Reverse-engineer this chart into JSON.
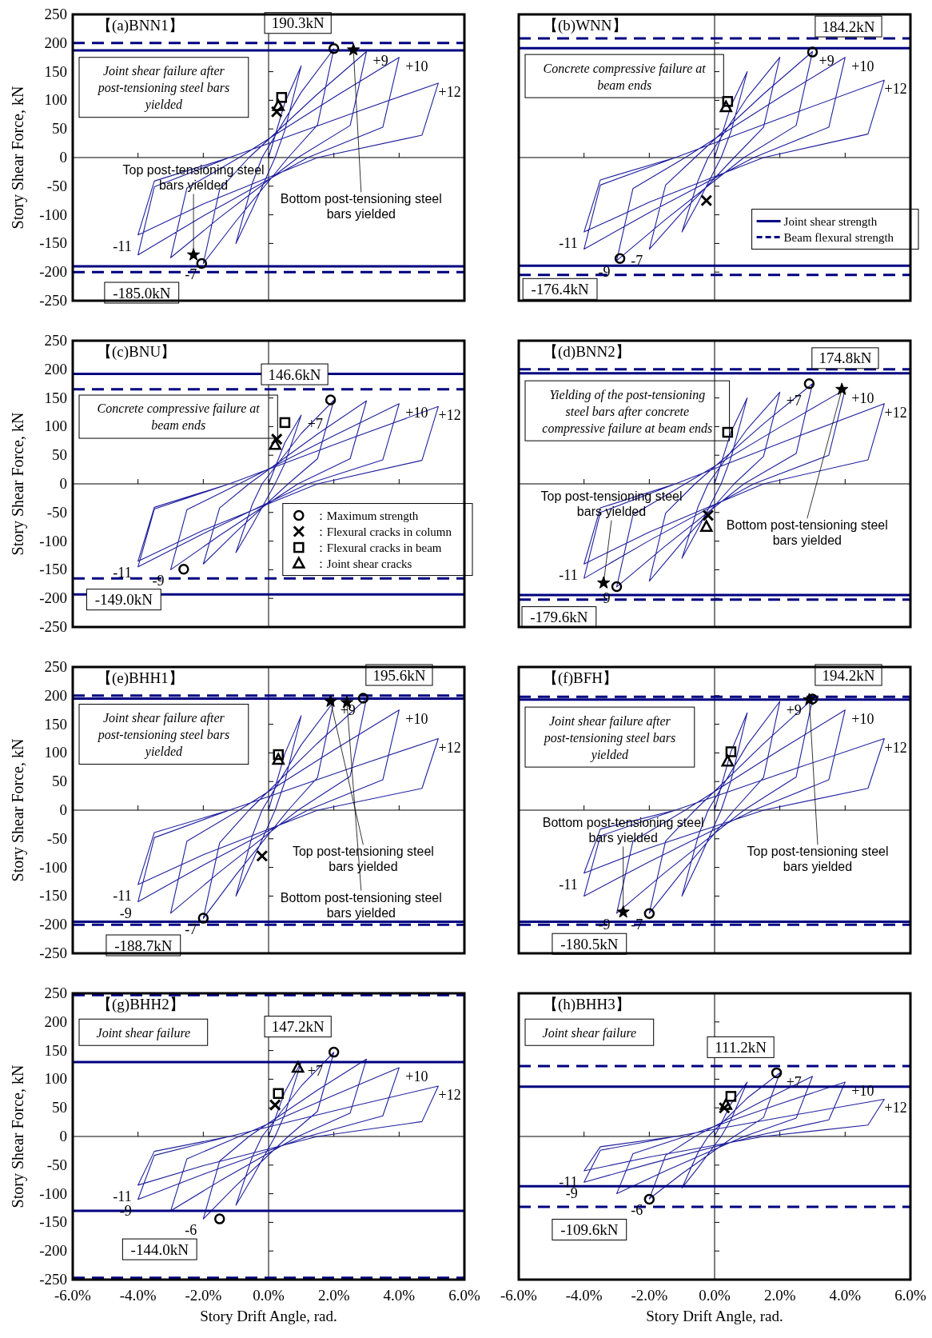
{
  "chart_data": [
    {
      "type": "line",
      "title": "【(a)BNN1】",
      "ylabel": "Story Shear Force, kN",
      "xlim": [
        -6,
        6
      ],
      "ylim": [
        -250,
        250
      ],
      "xticks": [
        -6,
        -4,
        -2,
        0,
        2,
        4,
        6
      ],
      "yticks": [
        -250,
        -200,
        -150,
        -100,
        -50,
        0,
        50,
        100,
        150,
        200,
        250
      ],
      "tick_labels": "y",
      "series": [
        {
          "type": "line",
          "color": "#1f1f9e",
          "x": [
            0,
            0.5,
            1,
            0.5,
            0.2,
            -0.5,
            -1,
            -0.5,
            -0.2,
            1,
            2,
            1.5,
            0.6,
            -1,
            -2,
            -1.5,
            -0.6,
            1.5,
            3,
            2.5,
            0.9,
            -1.5,
            -3,
            -2.5,
            -0.9,
            2,
            4,
            3.5,
            1.2,
            -2,
            -4,
            -3.5,
            -1.2,
            2.6,
            5.2,
            4.7,
            1.5,
            -2,
            -4,
            -3.5,
            -1.2
          ],
          "values": [
            0,
            96,
            160,
            48,
            0,
            -90,
            -150,
            -45,
            0,
            114,
            190,
            57,
            0,
            -111,
            -185,
            -56,
            0,
            111,
            185,
            56,
            0,
            -105,
            -175,
            -53,
            0,
            105,
            175,
            53,
            0,
            -102,
            -170,
            -51,
            0,
            78,
            130,
            39,
            0,
            -81,
            -135,
            -41,
            0
          ]
        },
        {
          "type": "scatter",
          "marker": "circle",
          "color": "#000000",
          "x": [
            2.0,
            -2.05
          ],
          "values": [
            190.3,
            -185.0
          ],
          "value_labels": [
            "190.3kN",
            "-185.0kN"
          ]
        },
        {
          "type": "scatter",
          "marker": "star",
          "color": "#000000",
          "x": [
            2.6,
            -2.3
          ],
          "values": [
            188,
            -170
          ]
        },
        {
          "type": "scatter",
          "marker": "square",
          "color": "#000000",
          "x": [
            0.4
          ],
          "values": [
            105
          ]
        },
        {
          "type": "scatter",
          "marker": "triangle",
          "color": "#000000",
          "x": [
            0.3
          ],
          "values": [
            90
          ]
        },
        {
          "type": "scatter",
          "marker": "cross",
          "color": "#000000",
          "x": [
            0.25
          ],
          "values": [
            80
          ]
        }
      ],
      "ref_lines": [
        {
          "axis": "y",
          "value": 200,
          "color": "#000080",
          "line_style": "dashed"
        },
        {
          "axis": "y",
          "value": 187,
          "color": "#000080",
          "line_style": "solid"
        },
        {
          "axis": "y",
          "value": -190,
          "color": "#000080",
          "line_style": "solid"
        },
        {
          "axis": "y",
          "value": -200,
          "color": "#000080",
          "line_style": "dashed"
        }
      ],
      "annotations": [
        "Joint shear failure after post-tensioning steel bars yielded",
        {
          "text": "+9",
          "x": 3,
          "y": 185
        },
        {
          "text": "+10",
          "x": 4,
          "y": 175
        },
        {
          "text": "+12",
          "x": 5.2,
          "y": 130
        },
        {
          "text": "-11",
          "x": -4,
          "y": -135
        },
        {
          "text": "-7",
          "x": -2,
          "y": -185
        },
        {
          "text": "Top post-tensioning steel bars yielded",
          "x": -2.3,
          "y": -170
        },
        {
          "text": "Bottom post-tensioning steel bars yielded",
          "x": 2.6,
          "y": 188
        }
      ]
    },
    {
      "type": "line",
      "title": "【(b)WNN】",
      "xlim": [
        -6,
        6
      ],
      "ylim": [
        -250,
        250
      ],
      "xticks": [
        -6,
        -4,
        -2,
        0,
        2,
        4,
        6
      ],
      "yticks": [
        -250,
        -200,
        -150,
        -100,
        -50,
        0,
        50,
        100,
        150,
        200,
        250
      ],
      "tick_labels": false,
      "legend": "bottom right",
      "series": [
        {
          "type": "line",
          "color": "#1f1f9e",
          "x": [
            0,
            0.5,
            1,
            0.5,
            0.2,
            -0.5,
            -1,
            -0.5,
            -0.2,
            1,
            2,
            1.5,
            0.6,
            -1,
            -2,
            -1.5,
            -0.6,
            1.5,
            3,
            2.5,
            0.9,
            -1.5,
            -3,
            -2.5,
            -0.9,
            2,
            4,
            3.5,
            1.2,
            -2,
            -4,
            -3.5,
            -1.2,
            2.6,
            5.2,
            4.7,
            1.5,
            -2,
            -4,
            -3.5,
            -1.2
          ],
          "values": [
            0,
            90,
            150,
            45,
            0,
            -78,
            -130,
            -39,
            0,
            105,
            175,
            53,
            0,
            -96,
            -160,
            -48,
            0,
            111,
            185,
            56,
            0,
            -108,
            -180,
            -54,
            0,
            105,
            175,
            53,
            0,
            -96,
            -160,
            -48,
            0,
            81,
            135,
            41,
            0,
            -78,
            -130,
            -39,
            0
          ]
        },
        {
          "type": "scatter",
          "marker": "circle",
          "color": "#000000",
          "x": [
            3.0,
            -2.9
          ],
          "values": [
            184.2,
            -176.4
          ],
          "value_labels": [
            "184.2kN",
            "-176.4kN"
          ]
        },
        {
          "type": "scatter",
          "marker": "square",
          "color": "#000000",
          "x": [
            0.4
          ],
          "values": [
            98
          ]
        },
        {
          "type": "scatter",
          "marker": "triangle",
          "color": "#000000",
          "x": [
            0.35
          ],
          "values": [
            88
          ]
        },
        {
          "type": "scatter",
          "marker": "cross",
          "color": "#000000",
          "x": [
            -0.25
          ],
          "values": [
            -75
          ]
        }
      ],
      "ref_lines": [
        {
          "axis": "y",
          "value": 191,
          "color": "#000080",
          "line_style": "solid",
          "label": "Joint shear strength"
        },
        {
          "axis": "y",
          "value": 208,
          "color": "#000080",
          "line_style": "dashed",
          "label": "Beam flexural strength"
        },
        {
          "axis": "y",
          "value": -189,
          "color": "#000080",
          "line_style": "solid"
        },
        {
          "axis": "y",
          "value": -205,
          "color": "#000080",
          "line_style": "dashed"
        }
      ],
      "annotations": [
        "Concrete compressive failure at beam ends",
        {
          "text": "+9",
          "x": 3,
          "y": 185
        },
        {
          "text": "+10",
          "x": 4,
          "y": 175
        },
        {
          "text": "+12",
          "x": 5.2,
          "y": 135
        },
        {
          "text": "-11",
          "x": -4,
          "y": -130
        },
        {
          "text": "-9",
          "x": -3,
          "y": -180
        },
        {
          "text": "-7",
          "x": -2,
          "y": -160
        }
      ]
    },
    {
      "type": "line",
      "title": "【(c)BNU】",
      "ylabel": "Story Shear Force, kN",
      "xlim": [
        -6,
        6
      ],
      "ylim": [
        -250,
        250
      ],
      "xticks": [
        -6,
        -4,
        -2,
        0,
        2,
        4,
        6
      ],
      "yticks": [
        -250,
        -200,
        -150,
        -100,
        -50,
        0,
        50,
        100,
        150,
        200,
        250
      ],
      "tick_labels": "y",
      "legend": "bottom right",
      "series": [
        {
          "type": "line",
          "color": "#1f1f9e",
          "x": [
            0,
            0.5,
            1,
            0.5,
            0.2,
            -0.5,
            -1,
            -0.5,
            -0.2,
            1,
            2,
            1.5,
            0.6,
            -1,
            -2,
            -1.5,
            -0.6,
            1.5,
            3,
            2.5,
            0.9,
            -1.5,
            -3,
            -2.5,
            -0.9,
            2,
            4,
            3.5,
            1.2,
            -2,
            -4,
            -3.5,
            -1.2,
            2.6,
            5.2,
            4.7,
            1.5,
            -2,
            -4,
            -3.5,
            -1.2
          ],
          "values": [
            0,
            72,
            120,
            36,
            0,
            -72,
            -120,
            -36,
            0,
            88,
            146,
            44,
            0,
            -84,
            -140,
            -42,
            0,
            87,
            145,
            44,
            0,
            -90,
            -150,
            -45,
            0,
            84,
            140,
            42,
            0,
            -87,
            -145,
            -44,
            0,
            81,
            135,
            41,
            0,
            -81,
            -135,
            -41,
            0
          ]
        },
        {
          "type": "scatter",
          "name": "：Maximum strength",
          "marker": "circle",
          "color": "#000000",
          "x": [
            1.9,
            -2.6
          ],
          "values": [
            146.6,
            -149.0
          ],
          "value_labels": [
            "146.6kN",
            "-149.0kN"
          ]
        },
        {
          "type": "scatter",
          "name": "：Flexural cracks in column",
          "marker": "cross",
          "color": "#000000",
          "x": [
            0.25
          ],
          "values": [
            78
          ]
        },
        {
          "type": "scatter",
          "name": "：Flexural cracks in beam",
          "marker": "square",
          "color": "#000000",
          "x": [
            0.5
          ],
          "values": [
            107
          ]
        },
        {
          "type": "scatter",
          "name": "：Joint shear cracks",
          "marker": "triangle",
          "color": "#000000",
          "x": [
            0.2
          ],
          "values": [
            68
          ]
        }
      ],
      "ref_lines": [
        {
          "axis": "y",
          "value": 192,
          "color": "#000080",
          "line_style": "solid"
        },
        {
          "axis": "y",
          "value": 165,
          "color": "#000080",
          "line_style": "dashed"
        },
        {
          "axis": "y",
          "value": -165,
          "color": "#000080",
          "line_style": "dashed"
        },
        {
          "axis": "y",
          "value": -193,
          "color": "#000080",
          "line_style": "solid"
        }
      ],
      "annotations": [
        "Concrete compressive failure at beam ends",
        {
          "text": "+7",
          "x": 1,
          "y": 120
        },
        {
          "text": "+10",
          "x": 4,
          "y": 140
        },
        {
          "text": "+12",
          "x": 5.2,
          "y": 135
        },
        {
          "text": "-11",
          "x": -4,
          "y": -135
        },
        {
          "text": "-9",
          "x": -3,
          "y": -150
        }
      ]
    },
    {
      "type": "line",
      "title": "【(d)BNN2】",
      "xlim": [
        -6,
        6
      ],
      "ylim": [
        -250,
        250
      ],
      "xticks": [
        -6,
        -4,
        -2,
        0,
        2,
        4,
        6
      ],
      "yticks": [
        -250,
        -200,
        -150,
        -100,
        -50,
        0,
        50,
        100,
        150,
        200,
        250
      ],
      "tick_labels": false,
      "series": [
        {
          "type": "line",
          "color": "#1f1f9e",
          "x": [
            0,
            0.5,
            1,
            0.5,
            0.2,
            -0.5,
            -1,
            -0.5,
            -0.2,
            1,
            2,
            1.5,
            0.6,
            -1,
            -2,
            -1.5,
            -0.6,
            1.5,
            3,
            2.5,
            0.9,
            -1.5,
            -3,
            -2.5,
            -0.9,
            2,
            4,
            3.5,
            1.2,
            -2,
            -4,
            -3.5,
            -1.2,
            2.6,
            5.2,
            4.7,
            1.5,
            -2,
            -4,
            -3.5,
            -1.2
          ],
          "values": [
            0,
            90,
            150,
            45,
            0,
            -78,
            -130,
            -39,
            0,
            96,
            160,
            48,
            0,
            -102,
            -170,
            -51,
            0,
            105,
            175,
            53,
            0,
            -108,
            -180,
            -54,
            0,
            99,
            165,
            50,
            0,
            -99,
            -165,
            -50,
            0,
            84,
            140,
            42,
            0,
            -84,
            -140,
            -42,
            0
          ]
        },
        {
          "type": "scatter",
          "marker": "circle",
          "color": "#000000",
          "x": [
            2.9,
            -3.0
          ],
          "values": [
            174.8,
            -179.6
          ],
          "value_labels": [
            "174.8kN",
            "-179.6kN"
          ]
        },
        {
          "type": "scatter",
          "marker": "star",
          "color": "#000000",
          "x": [
            3.9,
            -3.4
          ],
          "values": [
            165,
            -173
          ]
        },
        {
          "type": "scatter",
          "marker": "square",
          "color": "#000000",
          "x": [
            0.4
          ],
          "values": [
            90
          ]
        },
        {
          "type": "scatter",
          "marker": "cross",
          "color": "#000000",
          "x": [
            -0.2
          ],
          "values": [
            -55
          ]
        },
        {
          "type": "scatter",
          "marker": "triangle",
          "color": "#000000",
          "x": [
            -0.25
          ],
          "values": [
            -75
          ]
        }
      ],
      "ref_lines": [
        {
          "axis": "y",
          "value": 200,
          "color": "#000080",
          "line_style": "dashed"
        },
        {
          "axis": "y",
          "value": 193,
          "color": "#000080",
          "line_style": "solid"
        },
        {
          "axis": "y",
          "value": -194,
          "color": "#000080",
          "line_style": "solid"
        },
        {
          "axis": "y",
          "value": -202,
          "color": "#000080",
          "line_style": "dashed"
        }
      ],
      "annotations": [
        "Yielding of the post-tensioning steel bars after concrete compressive failure at beam ends",
        {
          "text": "+7",
          "x": 2,
          "y": 160
        },
        {
          "text": "+10",
          "x": 4,
          "y": 165
        },
        {
          "text": "+12",
          "x": 5.2,
          "y": 140
        },
        {
          "text": "-11",
          "x": -4,
          "y": -140
        },
        {
          "text": "-9",
          "x": -3,
          "y": -180
        },
        {
          "text": "Bottom post-tensioning steel bars yielded",
          "x": 3.9,
          "y": 165
        },
        {
          "text": "Top post-tensioning steel bars yielded",
          "x": -3.4,
          "y": -173
        }
      ]
    },
    {
      "type": "line",
      "title": "【(e)BHH1】",
      "ylabel": "Story Shear Force, kN",
      "xlim": [
        -6,
        6
      ],
      "ylim": [
        -250,
        250
      ],
      "xticks": [
        -6,
        -4,
        -2,
        0,
        2,
        4,
        6
      ],
      "yticks": [
        -250,
        -200,
        -150,
        -100,
        -50,
        0,
        50,
        100,
        150,
        200,
        250
      ],
      "tick_labels": "y",
      "series": [
        {
          "type": "line",
          "color": "#1f1f9e",
          "x": [
            0,
            0.5,
            1,
            0.5,
            0.2,
            -0.5,
            -1,
            -0.5,
            -0.2,
            1,
            2,
            1.5,
            0.6,
            -1,
            -2,
            -1.5,
            -0.6,
            1.5,
            3,
            2.5,
            0.9,
            -1.5,
            -3,
            -2.5,
            -0.9,
            2,
            4,
            3.5,
            1.2,
            -2,
            -4,
            -3.5,
            -1.2,
            2.6,
            5.2,
            4.7,
            1.5,
            -2,
            -4,
            -3.5,
            -1.2
          ],
          "values": [
            0,
            99,
            165,
            50,
            0,
            -90,
            -150,
            -45,
            0,
            114,
            190,
            57,
            0,
            -113,
            -189,
            -57,
            0,
            117,
            195,
            59,
            0,
            -108,
            -180,
            -54,
            0,
            105,
            175,
            53,
            0,
            -96,
            -160,
            -48,
            0,
            75,
            125,
            38,
            0,
            -78,
            -130,
            -39,
            0
          ]
        },
        {
          "type": "scatter",
          "marker": "circle",
          "color": "#000000",
          "x": [
            2.9,
            -2.0
          ],
          "values": [
            195.6,
            -188.7
          ],
          "value_labels": [
            "195.6kN",
            "-188.7kN"
          ]
        },
        {
          "type": "scatter",
          "marker": "star",
          "color": "#000000",
          "x": [
            1.9,
            2.4
          ],
          "values": [
            190,
            188
          ]
        },
        {
          "type": "scatter",
          "marker": "square",
          "color": "#000000",
          "x": [
            0.3
          ],
          "values": [
            97
          ]
        },
        {
          "type": "scatter",
          "marker": "triangle",
          "color": "#000000",
          "x": [
            0.3
          ],
          "values": [
            88
          ]
        },
        {
          "type": "scatter",
          "marker": "cross",
          "color": "#000000",
          "x": [
            -0.2
          ],
          "values": [
            -80
          ]
        }
      ],
      "ref_lines": [
        {
          "axis": "y",
          "value": 200,
          "color": "#000080",
          "line_style": "dashed"
        },
        {
          "axis": "y",
          "value": 195,
          "color": "#000080",
          "line_style": "solid"
        },
        {
          "axis": "y",
          "value": -195,
          "color": "#000080",
          "line_style": "solid"
        },
        {
          "axis": "y",
          "value": -200,
          "color": "#000080",
          "line_style": "dashed"
        }
      ],
      "annotations": [
        "Joint shear failure after post-tensioning steel bars yielded",
        {
          "text": "+9",
          "x": 2,
          "y": 190
        },
        {
          "text": "+10",
          "x": 4,
          "y": 175
        },
        {
          "text": "+12",
          "x": 5.2,
          "y": 125
        },
        {
          "text": "-11",
          "x": -4,
          "y": -130
        },
        {
          "text": "-9",
          "x": -4,
          "y": -160
        },
        {
          "text": "-7",
          "x": -2,
          "y": -189
        },
        {
          "text": "Top post-tensioning steel bars yielded",
          "x": 1.9,
          "y": 190
        },
        {
          "text": "Bottom post-tensioning steel bars yielded",
          "x": 2.4,
          "y": 188
        }
      ]
    },
    {
      "type": "line",
      "title": "【(f)BFH】",
      "xlim": [
        -6,
        6
      ],
      "ylim": [
        -250,
        250
      ],
      "xticks": [
        -6,
        -4,
        -2,
        0,
        2,
        4,
        6
      ],
      "yticks": [
        -250,
        -200,
        -150,
        -100,
        -50,
        0,
        50,
        100,
        150,
        200,
        250
      ],
      "tick_labels": false,
      "series": [
        {
          "type": "line",
          "color": "#1f1f9e",
          "x": [
            0,
            0.5,
            1,
            0.5,
            0.2,
            -0.5,
            -1,
            -0.5,
            -0.2,
            1,
            2,
            1.5,
            0.6,
            -1,
            -2,
            -1.5,
            -0.6,
            1.5,
            3,
            2.5,
            0.9,
            -1.5,
            -3,
            -2.5,
            -0.9,
            2,
            4,
            3.5,
            1.2,
            -2,
            -4,
            -3.5,
            -1.2,
            2.6,
            5.2,
            4.7,
            1.5,
            -2,
            -4,
            -3.5,
            -1.2
          ],
          "values": [
            0,
            102,
            170,
            51,
            0,
            -90,
            -150,
            -45,
            0,
            114,
            190,
            57,
            0,
            -108,
            -180,
            -54,
            0,
            116,
            194,
            58,
            0,
            -108,
            -180,
            -54,
            0,
            105,
            175,
            53,
            0,
            -90,
            -150,
            -45,
            0,
            75,
            125,
            38,
            0,
            -66,
            -110,
            -33,
            0
          ]
        },
        {
          "type": "scatter",
          "marker": "circle",
          "color": "#000000",
          "x": [
            3.0,
            -2.0
          ],
          "values": [
            194.2,
            -180.5
          ],
          "value_labels": [
            "194.2kN",
            "-180.5kN"
          ]
        },
        {
          "type": "scatter",
          "marker": "star",
          "color": "#000000",
          "x": [
            2.9,
            -2.8
          ],
          "values": [
            193,
            -178
          ]
        },
        {
          "type": "scatter",
          "marker": "square",
          "color": "#000000",
          "x": [
            0.5
          ],
          "values": [
            102
          ]
        },
        {
          "type": "scatter",
          "marker": "triangle",
          "color": "#000000",
          "x": [
            0.4
          ],
          "values": [
            85
          ]
        }
      ],
      "ref_lines": [
        {
          "axis": "y",
          "value": 198,
          "color": "#000080",
          "line_style": "dashed"
        },
        {
          "axis": "y",
          "value": 193,
          "color": "#000080",
          "line_style": "solid"
        },
        {
          "axis": "y",
          "value": -195,
          "color": "#000080",
          "line_style": "solid"
        },
        {
          "axis": "y",
          "value": -200,
          "color": "#000080",
          "line_style": "dashed"
        }
      ],
      "annotations": [
        "Joint shear failure after post-tensioning steel bars yielded",
        {
          "text": "+9",
          "x": 2,
          "y": 190
        },
        {
          "text": "+10",
          "x": 4,
          "y": 175
        },
        {
          "text": "+12",
          "x": 5.2,
          "y": 125
        },
        {
          "text": "-11",
          "x": -4,
          "y": -110
        },
        {
          "text": "-9",
          "x": -3,
          "y": -180
        },
        {
          "text": "-7",
          "x": -2,
          "y": -180
        },
        {
          "text": "Bottom post-tensioning steel bars yielded",
          "x": -2.8,
          "y": -178
        },
        {
          "text": "Top post-tensioning steel bars yielded",
          "x": 2.9,
          "y": 193
        }
      ]
    },
    {
      "type": "line",
      "title": "【(g)BHH2】",
      "ylabel": "Story Shear Force, kN",
      "xlabel": "Story Drift Angle, rad.",
      "xlim": [
        -6,
        6
      ],
      "ylim": [
        -250,
        250
      ],
      "xticks": [
        {
          "value": -6,
          "label": "-6.0%"
        },
        {
          "value": -4,
          "label": "-4.0%"
        },
        {
          "value": -2,
          "label": "-2.0%"
        },
        {
          "value": 0,
          "label": "0.0%"
        },
        {
          "value": 2,
          "label": "2.0%"
        },
        {
          "value": 4,
          "label": "4.0%"
        },
        {
          "value": 6,
          "label": "6.0%"
        }
      ],
      "yticks": [
        -250,
        -200,
        -150,
        -100,
        -50,
        0,
        50,
        100,
        150,
        200,
        250
      ],
      "series": [
        {
          "type": "line",
          "color": "#1f1f9e",
          "x": [
            0,
            0.5,
            1,
            0.5,
            0.2,
            -0.5,
            -1,
            -0.5,
            -0.2,
            1,
            2,
            1.5,
            0.6,
            -1,
            -2,
            -1.5,
            -0.6,
            1.5,
            3,
            2.5,
            0.9,
            -1.5,
            -3,
            -2.5,
            -0.9,
            2,
            4,
            3.5,
            1.2,
            -2,
            -4,
            -3.5,
            -1.2,
            2.6,
            5.2,
            4.7,
            1.5,
            -2,
            -4,
            -3.5,
            -1.2
          ],
          "values": [
            0,
            78,
            130,
            39,
            0,
            -72,
            -120,
            -36,
            0,
            88,
            147,
            44,
            0,
            -86,
            -144,
            -43,
            0,
            81,
            135,
            41,
            0,
            -78,
            -130,
            -39,
            0,
            72,
            120,
            36,
            0,
            -66,
            -110,
            -33,
            0,
            53,
            88,
            26,
            0,
            -51,
            -85,
            -26,
            0
          ]
        },
        {
          "type": "scatter",
          "marker": "circle",
          "color": "#000000",
          "x": [
            2.0,
            -1.5
          ],
          "values": [
            147.2,
            -144.0
          ],
          "value_labels": [
            "147.2kN",
            "-144.0kN"
          ]
        },
        {
          "type": "scatter",
          "marker": "triangle",
          "color": "#000000",
          "x": [
            0.9
          ],
          "values": [
            120
          ]
        },
        {
          "type": "scatter",
          "marker": "square",
          "color": "#000000",
          "x": [
            0.3
          ],
          "values": [
            75
          ]
        },
        {
          "type": "scatter",
          "marker": "cross",
          "color": "#000000",
          "x": [
            0.2
          ],
          "values": [
            55
          ]
        }
      ],
      "ref_lines": [
        {
          "axis": "y",
          "value": 247,
          "color": "#000080",
          "line_style": "dashed"
        },
        {
          "axis": "y",
          "value": 130,
          "color": "#000080",
          "line_style": "solid"
        },
        {
          "axis": "y",
          "value": -130,
          "color": "#000080",
          "line_style": "solid"
        },
        {
          "axis": "y",
          "value": -247,
          "color": "#000080",
          "line_style": "dashed"
        }
      ],
      "annotations": [
        "Joint shear failure",
        {
          "text": "+7",
          "x": 1,
          "y": 130
        },
        {
          "text": "+10",
          "x": 4,
          "y": 120
        },
        {
          "text": "+12",
          "x": 5.2,
          "y": 88
        },
        {
          "text": "-11",
          "x": -4,
          "y": -85
        },
        {
          "text": "-9",
          "x": -4,
          "y": -110
        },
        {
          "text": "-6",
          "x": -2,
          "y": -144
        }
      ]
    },
    {
      "type": "line",
      "title": "【(h)BHH3】",
      "xlabel": "Story Drift Angle, rad.",
      "xlim": [
        -6,
        6
      ],
      "ylim": [
        -250,
        250
      ],
      "xticks": [
        {
          "value": -6,
          "label": "-6.0%"
        },
        {
          "value": -4,
          "label": "-4.0%"
        },
        {
          "value": -2,
          "label": "-2.0%"
        },
        {
          "value": 0,
          "label": "0.0%"
        },
        {
          "value": 2,
          "label": "2.0%"
        },
        {
          "value": 4,
          "label": "4.0%"
        },
        {
          "value": 6,
          "label": "6.0%"
        }
      ],
      "yticks": [
        -250,
        -200,
        -150,
        -100,
        -50,
        0,
        50,
        100,
        150,
        200,
        250
      ],
      "tick_labels": "x",
      "series": [
        {
          "type": "line",
          "color": "#1f1f9e",
          "x": [
            0,
            0.5,
            1,
            0.5,
            0.2,
            -0.5,
            -1,
            -0.5,
            -0.2,
            1,
            2,
            1.5,
            0.6,
            -1,
            -2,
            -1.5,
            -0.6,
            1.5,
            3,
            2.5,
            0.9,
            -1.5,
            -3,
            -2.5,
            -0.9,
            2,
            4,
            3.5,
            1.2,
            -2,
            -4,
            -3.5,
            -1.2,
            2.6,
            5.2,
            4.7,
            1.5,
            -2,
            -4,
            -3.5,
            -1.2
          ],
          "values": [
            0,
            57,
            95,
            29,
            0,
            -54,
            -90,
            -27,
            0,
            67,
            111,
            33,
            0,
            -65,
            -109,
            -33,
            0,
            63,
            105,
            32,
            0,
            -60,
            -100,
            -30,
            0,
            57,
            95,
            29,
            0,
            -48,
            -80,
            -24,
            0,
            39,
            65,
            20,
            0,
            -36,
            -60,
            -18,
            0
          ]
        },
        {
          "type": "scatter",
          "marker": "circle",
          "color": "#000000",
          "x": [
            1.9,
            -2.0
          ],
          "values": [
            111.2,
            -109.6
          ],
          "value_labels": [
            "111.2kN",
            "-109.6kN"
          ]
        },
        {
          "type": "scatter",
          "marker": "square",
          "color": "#000000",
          "x": [
            0.5
          ],
          "values": [
            70
          ]
        },
        {
          "type": "scatter",
          "marker": "triangle",
          "color": "#000000",
          "x": [
            0.35
          ],
          "values": [
            55
          ]
        },
        {
          "type": "scatter",
          "marker": "cross",
          "color": "#000000",
          "x": [
            0.3
          ],
          "values": [
            50
          ]
        }
      ],
      "ref_lines": [
        {
          "axis": "y",
          "value": 123,
          "color": "#000080",
          "line_style": "dashed"
        },
        {
          "axis": "y",
          "value": 87,
          "color": "#000080",
          "line_style": "solid"
        },
        {
          "axis": "y",
          "value": -87,
          "color": "#000080",
          "line_style": "solid"
        },
        {
          "axis": "y",
          "value": -123,
          "color": "#000080",
          "line_style": "dashed"
        }
      ],
      "annotations": [
        "Joint shear failure",
        {
          "text": "+7",
          "x": 2,
          "y": 111
        },
        {
          "text": "+10",
          "x": 4,
          "y": 95
        },
        {
          "text": "+12",
          "x": 5.2,
          "y": 65
        },
        {
          "text": "-11",
          "x": -4,
          "y": -60
        },
        {
          "text": "-9",
          "x": -4,
          "y": -80
        },
        {
          "text": "-6",
          "x": -2,
          "y": -109
        }
      ]
    }
  ]
}
